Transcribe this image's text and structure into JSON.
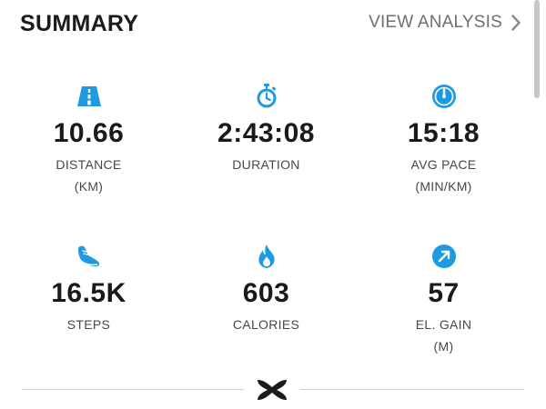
{
  "header": {
    "title": "SUMMARY",
    "link_label": "VIEW ANALYSIS"
  },
  "stats": [
    {
      "icon": "road-icon",
      "value": "10.66",
      "label": "DISTANCE",
      "unit": "(KM)"
    },
    {
      "icon": "stopwatch-icon",
      "value": "2:43:08",
      "label": "DURATION",
      "unit": ""
    },
    {
      "icon": "speedometer-icon",
      "value": "15:18",
      "label": "AVG PACE",
      "unit": "(MIN/KM)"
    },
    {
      "icon": "shoe-icon",
      "value": "16.5K",
      "label": "STEPS",
      "unit": ""
    },
    {
      "icon": "flame-icon",
      "value": "603",
      "label": "CALORIES",
      "unit": ""
    },
    {
      "icon": "elevation-arrow-icon",
      "value": "57",
      "label": "EL. GAIN",
      "unit": "(M)"
    }
  ],
  "colors": {
    "accent": "#1e9be0",
    "text": "#1a1a1a",
    "muted": "#6f6f6f"
  }
}
